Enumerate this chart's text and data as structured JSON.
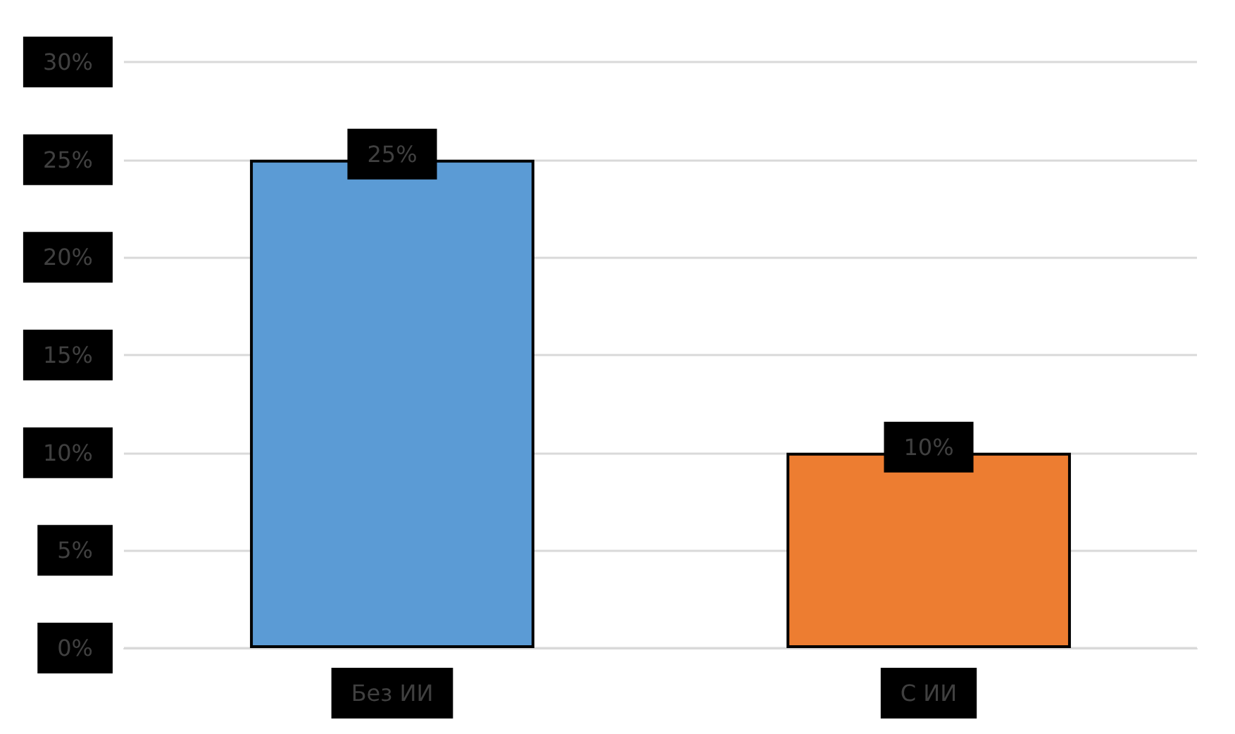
{
  "chart_data": {
    "type": "bar",
    "categories": [
      "Без ИИ",
      "С ИИ"
    ],
    "values": [
      25,
      10
    ],
    "colors": [
      "#5b9bd5",
      "#ed7d31"
    ],
    "value_labels": [
      "25%",
      "10%"
    ],
    "ylim": [
      0,
      30
    ],
    "yticks": [
      {
        "value": 0,
        "label": "0%"
      },
      {
        "value": 5,
        "label": "5%"
      },
      {
        "value": 10,
        "label": "10%"
      },
      {
        "value": 15,
        "label": "15%"
      },
      {
        "value": 20,
        "label": "20%"
      },
      {
        "value": 25,
        "label": "25%"
      },
      {
        "value": 30,
        "label": "30%"
      }
    ],
    "grid": "y"
  }
}
